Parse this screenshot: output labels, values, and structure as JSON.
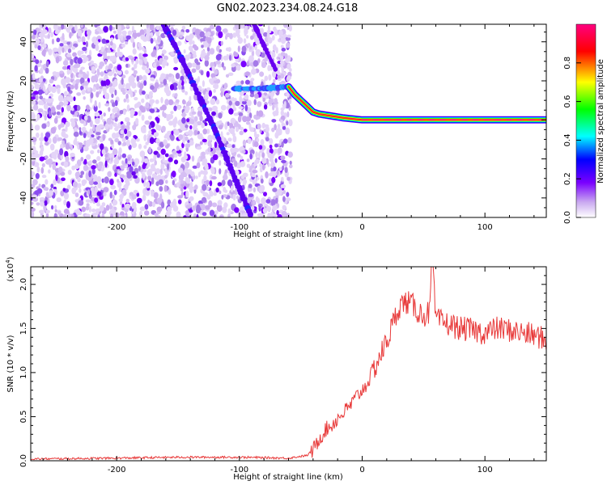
{
  "title": "GN02.2023.234.08.24.G18",
  "chart_data": [
    {
      "type": "heatmap",
      "xlabel": "Height of straight line (km)",
      "ylabel": "Frequency (Hz)",
      "xlim": [
        -270,
        150
      ],
      "ylim": [
        -50,
        49
      ],
      "xticks": [
        -200,
        -100,
        0,
        100
      ],
      "xtick_labels": [
        "-200",
        "-100",
        "0",
        "100"
      ],
      "yticks": [
        -40,
        -20,
        0,
        20,
        40
      ],
      "ytick_labels": [
        "-40",
        "-20",
        "0",
        "20",
        "40"
      ],
      "colorbar": {
        "label": "Normalized spectral amplitude",
        "range": [
          0,
          1
        ],
        "ticks": [
          0,
          0.2,
          0.4,
          0.6,
          0.8
        ],
        "tick_labels": [
          "0.0",
          "0.2",
          "0.4",
          "0.6",
          "0.8"
        ],
        "colors": [
          "#ffffff",
          "#c9a8f0",
          "#7a00ff",
          "#0000ff",
          "#00ffff",
          "#00ff00",
          "#ffff00",
          "#ff0000",
          "#ff0080"
        ]
      },
      "features": {
        "noise_region_x": [
          -270,
          -58
        ],
        "main_trace": [
          {
            "x": -60,
            "y": 17
          },
          {
            "x": -55,
            "y": 13
          },
          {
            "x": -50,
            "y": 10
          },
          {
            "x": -45,
            "y": 7
          },
          {
            "x": -40,
            "y": 4
          },
          {
            "x": -35,
            "y": 3
          },
          {
            "x": -25,
            "y": 2
          },
          {
            "x": -15,
            "y": 1
          },
          {
            "x": 0,
            "y": 0
          },
          {
            "x": 150,
            "y": 0
          }
        ],
        "plateau_trace": [
          {
            "x": -105,
            "y": 16
          },
          {
            "x": -85,
            "y": 16
          },
          {
            "x": -70,
            "y": 16.5
          },
          {
            "x": -60,
            "y": 17
          }
        ],
        "diagonal_trace_1": [
          {
            "x": -162,
            "y": 49
          },
          {
            "x": -150,
            "y": 35
          },
          {
            "x": -135,
            "y": 15
          },
          {
            "x": -120,
            "y": -5
          },
          {
            "x": -105,
            "y": -28
          },
          {
            "x": -90,
            "y": -50
          }
        ],
        "diagonal_trace_2": [
          {
            "x": -88,
            "y": 49
          },
          {
            "x": -80,
            "y": 38
          },
          {
            "x": -70,
            "y": 25
          }
        ]
      }
    },
    {
      "type": "line",
      "xlabel": "Height of straight line (km)",
      "ylabel": "SNR (10 * v/v)",
      "y_multiplier": "(x10",
      "y_multiplier_exp": "4",
      "y_multiplier_close": ")",
      "xlim": [
        -270,
        150
      ],
      "ylim": [
        0,
        2.2
      ],
      "xticks": [
        -200,
        -100,
        0,
        100
      ],
      "xtick_labels": [
        "-200",
        "-100",
        "0",
        "100"
      ],
      "yticks": [
        0,
        0.5,
        1.0,
        1.5,
        2.0
      ],
      "ytick_labels": [
        "0.0",
        "0.5",
        "1.0",
        "1.5",
        "2.0"
      ],
      "color": "#e83a3a",
      "series": [
        {
          "x": [
            -270,
            -200,
            -150,
            -100,
            -60,
            -45,
            -40,
            -35,
            -30,
            -25,
            -20,
            -15,
            -10,
            -5,
            0,
            5,
            10,
            15,
            20,
            25,
            30,
            35,
            40,
            45,
            50,
            55,
            57,
            60,
            70,
            80,
            90,
            100,
            110,
            120,
            130,
            140,
            145,
            150
          ],
          "y": [
            0.02,
            0.03,
            0.04,
            0.04,
            0.03,
            0.06,
            0.12,
            0.25,
            0.35,
            0.4,
            0.48,
            0.55,
            0.62,
            0.72,
            0.8,
            0.9,
            1.05,
            1.2,
            1.35,
            1.55,
            1.75,
            1.8,
            1.78,
            1.7,
            1.65,
            1.68,
            2.25,
            1.6,
            1.55,
            1.5,
            1.48,
            1.45,
            1.5,
            1.48,
            1.45,
            1.42,
            1.4,
            1.35
          ]
        }
      ]
    }
  ]
}
